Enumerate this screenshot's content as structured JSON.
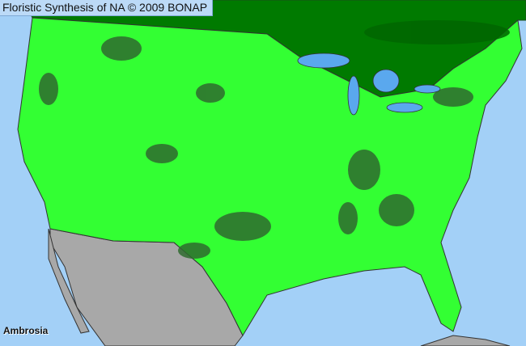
{
  "header": {
    "title": "Floristic Synthesis of NA © 2009 BONAP"
  },
  "map": {
    "taxon_label": "Ambrosia",
    "colors": {
      "ocean": "#a3d0f7",
      "canada": "#007a00",
      "present_state": "#33ff33",
      "present_county": "#2f6b2f",
      "outside_range": "#a8a8a8",
      "borders": "#333333"
    }
  }
}
